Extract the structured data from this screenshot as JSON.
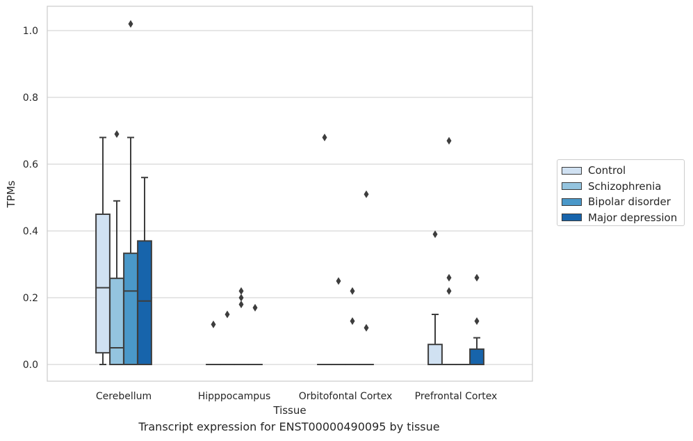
{
  "chart_data": {
    "type": "box",
    "title": "Transcript expression for ENST00000490095 by tissue",
    "xlabel": "Tissue",
    "ylabel": "TPMs",
    "ylim": [
      -0.05,
      1.07
    ],
    "yticks": [
      0.0,
      0.2,
      0.4,
      0.6,
      0.8,
      1.0
    ],
    "ytick_labels": [
      "0.0",
      "0.2",
      "0.4",
      "0.6",
      "0.8",
      "1.0"
    ],
    "grid": "horizontal",
    "legend_placement": "outside-right",
    "categories": [
      "Cerebellum",
      "Hipppocampus",
      "Orbitofontal Cortex",
      "Prefrontal Cortex"
    ],
    "series": [
      {
        "name": "Control",
        "color": "#d0e1f2",
        "boxes": [
          {
            "whislo": 0.0,
            "q1": 0.035,
            "med": 0.23,
            "q3": 0.45,
            "whishi": 0.68,
            "fliers": []
          },
          {
            "whislo": 0.0,
            "q1": 0.0,
            "med": 0.0,
            "q3": 0.0,
            "whishi": 0.0,
            "fliers": [
              0.12
            ]
          },
          {
            "whislo": 0.0,
            "q1": 0.0,
            "med": 0.0,
            "q3": 0.0,
            "whishi": 0.0,
            "fliers": [
              0.68
            ]
          },
          {
            "whislo": 0.0,
            "q1": 0.0,
            "med": 0.0,
            "q3": 0.06,
            "whishi": 0.15,
            "fliers": [
              0.39
            ]
          }
        ]
      },
      {
        "name": "Schizophrenia",
        "color": "#94c4df",
        "boxes": [
          {
            "whislo": 0.0,
            "q1": 0.0,
            "med": 0.05,
            "q3": 0.258,
            "whishi": 0.49,
            "fliers": [
              0.69
            ]
          },
          {
            "whislo": 0.0,
            "q1": 0.0,
            "med": 0.0,
            "q3": 0.0,
            "whishi": 0.0,
            "fliers": [
              0.15
            ]
          },
          {
            "whislo": 0.0,
            "q1": 0.0,
            "med": 0.0,
            "q3": 0.0,
            "whishi": 0.0,
            "fliers": [
              0.25
            ]
          },
          {
            "whislo": 0.0,
            "q1": 0.0,
            "med": 0.0,
            "q3": 0.0,
            "whishi": 0.0,
            "fliers": [
              0.67,
              0.26,
              0.22
            ]
          }
        ]
      },
      {
        "name": "Bipolar disorder",
        "color": "#4a98c9",
        "boxes": [
          {
            "whislo": 0.0,
            "q1": 0.0,
            "med": 0.22,
            "q3": 0.333,
            "whishi": 0.68,
            "fliers": [
              1.02
            ]
          },
          {
            "whislo": 0.0,
            "q1": 0.0,
            "med": 0.0,
            "q3": 0.0,
            "whishi": 0.0,
            "fliers": [
              0.22,
              0.2,
              0.18
            ]
          },
          {
            "whislo": 0.0,
            "q1": 0.0,
            "med": 0.0,
            "q3": 0.0,
            "whishi": 0.0,
            "fliers": [
              0.22,
              0.13
            ]
          },
          {
            "whislo": 0.0,
            "q1": 0.0,
            "med": 0.0,
            "q3": 0.0,
            "whishi": 0.0,
            "fliers": []
          }
        ]
      },
      {
        "name": "Major depression",
        "color": "#1764ab",
        "boxes": [
          {
            "whislo": 0.0,
            "q1": 0.0,
            "med": 0.19,
            "q3": 0.37,
            "whishi": 0.56,
            "fliers": []
          },
          {
            "whislo": 0.0,
            "q1": 0.0,
            "med": 0.0,
            "q3": 0.0,
            "whishi": 0.0,
            "fliers": [
              0.17
            ]
          },
          {
            "whislo": 0.0,
            "q1": 0.0,
            "med": 0.0,
            "q3": 0.0,
            "whishi": 0.0,
            "fliers": [
              0.51,
              0.11
            ]
          },
          {
            "whislo": 0.0,
            "q1": 0.0,
            "med": 0.0,
            "q3": 0.046,
            "whishi": 0.08,
            "fliers": [
              0.26,
              0.13
            ]
          }
        ]
      }
    ]
  }
}
